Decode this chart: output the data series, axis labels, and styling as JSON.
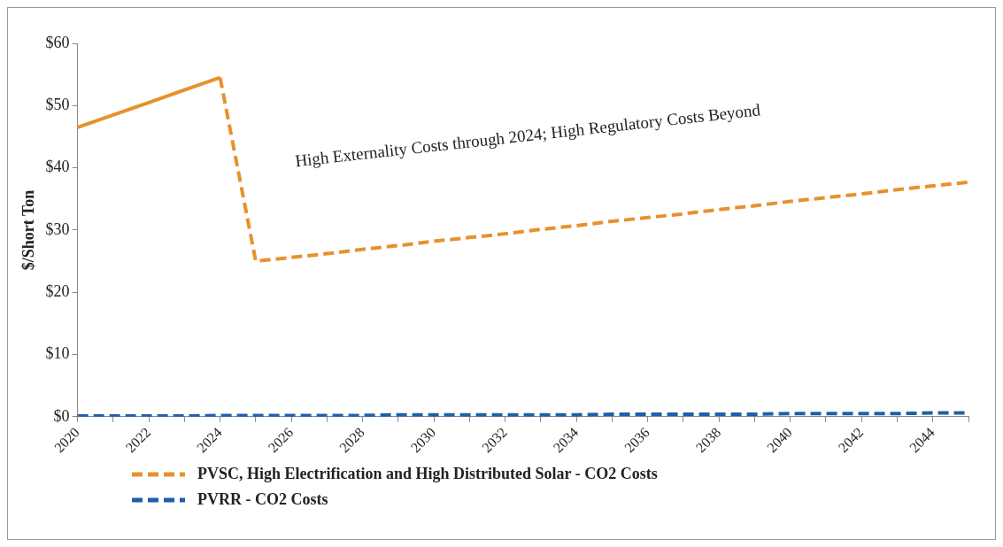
{
  "chart_data": {
    "type": "line",
    "ylabel": "$/Short Ton",
    "categories": [
      "2020",
      null,
      "2022",
      null,
      "2024",
      null,
      "2026",
      null,
      "2028",
      null,
      "2030",
      null,
      "2032",
      null,
      "2034",
      null,
      "2036",
      null,
      "2038",
      null,
      "2040",
      null,
      "2042",
      null,
      "2044",
      null
    ],
    "series": [
      {
        "color": "#e8912c",
        "line_style": "solid",
        "values": [
          46.5,
          48.5,
          50.5,
          52.5,
          54.5,
          null,
          null,
          null,
          null,
          null,
          null,
          null,
          null,
          null,
          null,
          null,
          null,
          null,
          null,
          null,
          null,
          null,
          null,
          null,
          null,
          null
        ]
      },
      {
        "name": "PVSC, High Electrification and High Distributed Solar - CO2 Costs",
        "color": "#e8912c",
        "line_style": "dashed",
        "values": [
          null,
          null,
          null,
          null,
          54.5,
          25,
          25.6,
          26.2,
          26.9,
          27.5,
          28.2,
          28.8,
          29.4,
          30.1,
          30.7,
          31.4,
          32,
          32.6,
          33.3,
          33.9,
          34.6,
          35.2,
          35.8,
          36.5,
          37.1,
          37.7
        ]
      },
      {
        "name": "PVRR - CO2 Costs",
        "color": "#1f5fa8",
        "line_style": "dashed",
        "values": [
          0.1,
          0.1,
          0.1,
          0.1,
          0.2,
          0.2,
          0.2,
          0.2,
          0.2,
          0.3,
          0.3,
          0.3,
          0.3,
          0.3,
          0.3,
          0.4,
          0.4,
          0.4,
          0.4,
          0.4,
          0.5,
          0.5,
          0.5,
          0.5,
          0.6,
          0.6
        ]
      }
    ],
    "ylim": [
      0,
      60
    ],
    "yticks": [
      {
        "value": 0,
        "label": "$0"
      },
      {
        "value": 10,
        "label": "$10"
      },
      {
        "value": 20,
        "label": "$20"
      },
      {
        "value": 30,
        "label": "$30"
      },
      {
        "value": 40,
        "label": "$40"
      },
      {
        "value": 50,
        "label": "$50"
      },
      {
        "value": 60,
        "label": "$60"
      }
    ],
    "annotations": [
      "High Externality Costs through 2024; High Regulatory Costs Beyond"
    ],
    "grid": false,
    "legend": "bottom",
    "marker": "none"
  }
}
